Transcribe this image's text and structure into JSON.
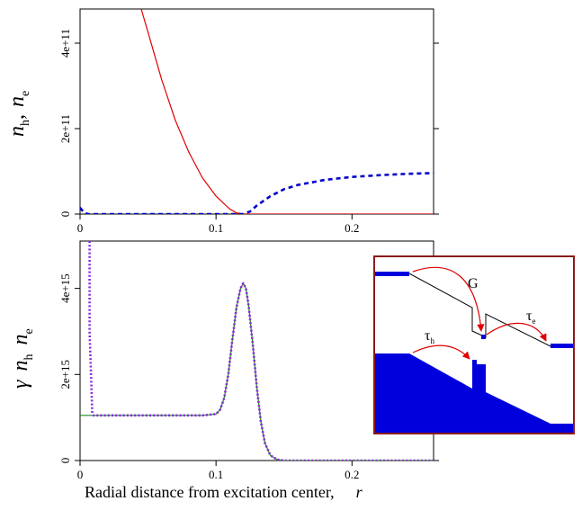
{
  "chart_data": [
    {
      "type": "line",
      "panel": "top",
      "ylabel": {
        "n1": "n",
        "s1": "h",
        "sep": ",",
        "n2": "n",
        "s2": "e"
      },
      "xlim": [
        0,
        0.26
      ],
      "ylim": [
        0,
        480000000000.0
      ],
      "xticks": [
        0,
        0.1,
        0.2
      ],
      "xtick_labels": [
        "0",
        "0.1",
        "0.2"
      ],
      "yticks": [
        0,
        200000000000.0,
        400000000000.0
      ],
      "ytick_labels": [
        "0",
        "2e+11",
        "4e+11"
      ],
      "series": [
        {
          "color": "#e00000",
          "style": "solid",
          "x": [
            0.045,
            0.05,
            0.06,
            0.07,
            0.08,
            0.09,
            0.1,
            0.11,
            0.115,
            0.12,
            0.26
          ],
          "y": [
            480000000000.0,
            425000000000.0,
            315000000000.0,
            220000000000.0,
            145000000000.0,
            85000000000.0,
            42000000000.0,
            12000000000.0,
            3000000000.0,
            0,
            0
          ]
        },
        {
          "color": "#0000cc",
          "style": "dashed",
          "x": [
            0,
            0.003,
            0.006,
            0.02,
            0.06,
            0.1,
            0.115,
            0.12,
            0.125,
            0.13,
            0.14,
            0.15,
            0.16,
            0.18,
            0.2,
            0.22,
            0.24,
            0.26
          ],
          "y": [
            15000000000.0,
            3000000000.0,
            0,
            0,
            0,
            0,
            0,
            0,
            6000000000.0,
            20000000000.0,
            42000000000.0,
            58000000000.0,
            68000000000.0,
            80000000000.0,
            87000000000.0,
            91000000000.0,
            94000000000.0,
            96000000000.0
          ]
        }
      ]
    },
    {
      "type": "line",
      "panel": "bottom",
      "ylabel": {
        "g": "γ",
        "n1": "n",
        "s1": "h",
        "n2": "n",
        "s2": "e"
      },
      "xlabel": {
        "text": "Radial distance from excitation center,",
        "var": "r"
      },
      "xlim": [
        0,
        0.26
      ],
      "ylim": [
        0,
        5100000000000000.0
      ],
      "xticks": [
        0,
        0.1,
        0.2
      ],
      "xtick_labels": [
        "0",
        "0.1",
        "0.2"
      ],
      "yticks": [
        0,
        2000000000000000.0,
        4000000000000000.0
      ],
      "ytick_labels": [
        "0",
        "2e+15",
        "4e+15"
      ],
      "series": [
        {
          "color": "#228b22",
          "style": "solid",
          "x": [
            0,
            0.05,
            0.09,
            0.1,
            0.103,
            0.106,
            0.109,
            0.112,
            0.115,
            0.118,
            0.12,
            0.122,
            0.124,
            0.127,
            0.13,
            0.133,
            0.136,
            0.14,
            0.145,
            0.15,
            0.2,
            0.26
          ],
          "y": [
            1050000000000000.0,
            1050000000000000.0,
            1050000000000000.0,
            1080000000000000.0,
            1180000000000000.0,
            1450000000000000.0,
            2000000000000000.0,
            2800000000000000.0,
            3550000000000000.0,
            4000000000000000.0,
            4120000000000000.0,
            4000000000000000.0,
            3600000000000000.0,
            2700000000000000.0,
            1700000000000000.0,
            900000000000000.0,
            400000000000000.0,
            120000000000000.0,
            20000000000000.0,
            0,
            0,
            0
          ]
        },
        {
          "color": "#8a2be2",
          "style": "dotted",
          "x": [
            0.007,
            0.007,
            0.009,
            0.01,
            0.05,
            0.09,
            0.1,
            0.103,
            0.106,
            0.109,
            0.112,
            0.115,
            0.118,
            0.12,
            0.122,
            0.124,
            0.127,
            0.13,
            0.133,
            0.136,
            0.14,
            0.145,
            0.15,
            0.2,
            0.26
          ],
          "y": [
            5100000000000000.0,
            3000000000000000.0,
            1100000000000000.0,
            1050000000000000.0,
            1050000000000000.0,
            1050000000000000.0,
            1080000000000000.0,
            1180000000000000.0,
            1450000000000000.0,
            2000000000000000.0,
            2800000000000000.0,
            3550000000000000.0,
            4000000000000000.0,
            4120000000000000.0,
            4000000000000000.0,
            3600000000000000.0,
            2700000000000000.0,
            1700000000000000.0,
            900000000000000.0,
            400000000000000.0,
            120000000000000.0,
            20000000000000.0,
            0,
            0,
            0
          ]
        }
      ]
    }
  ],
  "inset": {
    "border_color": "#8b1a1a",
    "fill_color": "#0000dd",
    "arrow_color": "#e00000",
    "label_G": "G",
    "label_tau": "τ",
    "label_tau_e_sub": "e",
    "label_tau_h_sub": "h"
  }
}
